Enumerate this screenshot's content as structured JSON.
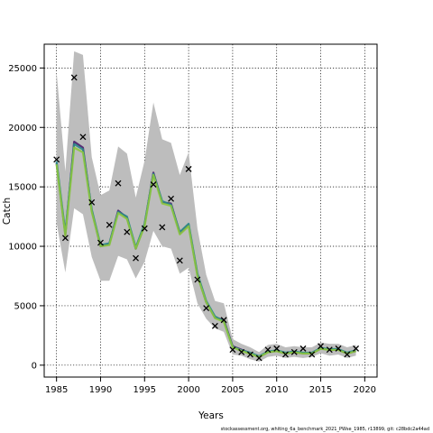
{
  "chart_data": {
    "type": "line",
    "title": "",
    "xlabel": "Years",
    "ylabel": "Catch",
    "xlim": [
      1983.6,
      2021.4
    ],
    "ylim": [
      -1000,
      27000
    ],
    "grid": true,
    "x_ticks": [
      1985,
      1990,
      1995,
      2000,
      2005,
      2010,
      2015,
      2020
    ],
    "y_ticks": [
      0,
      5000,
      10000,
      15000,
      20000,
      25000
    ],
    "years": [
      1985,
      1986,
      1987,
      1988,
      1989,
      1990,
      1991,
      1992,
      1993,
      1994,
      1995,
      1996,
      1997,
      1998,
      1999,
      2000,
      2001,
      2002,
      2003,
      2004,
      2005,
      2006,
      2007,
      2008,
      2009,
      2010,
      2011,
      2012,
      2013,
      2014,
      2015,
      2016,
      2017,
      2018,
      2019
    ],
    "observed": [
      17300,
      10700,
      24200,
      19200,
      13700,
      10300,
      11800,
      15300,
      11200,
      9000,
      11500,
      15200,
      11600,
      14000,
      8800,
      16500,
      7200,
      4800,
      3300,
      3800,
      1300,
      1100,
      900,
      600,
      1300,
      1400,
      900,
      1100,
      1400,
      900,
      1600,
      1300,
      1400,
      900,
      1400
    ],
    "series": [
      {
        "values": [
          17000,
          11000,
          18800,
          18300,
          13000,
          10000,
          10200,
          13000,
          12400,
          9800,
          11800,
          16200,
          13700,
          13600,
          11100,
          11800,
          7600,
          5300,
          4000,
          3800,
          1600,
          1300,
          1000,
          700,
          1100,
          1200,
          1000,
          1100,
          1000,
          1000,
          1400,
          1300,
          1300,
          1000,
          1200
        ]
      },
      {
        "values": [
          17150,
          11150,
          18600,
          18150,
          13100,
          10100,
          10250,
          12900,
          12500,
          9900,
          11900,
          16100,
          13800,
          13500,
          11200,
          11900,
          7700,
          5400,
          4100,
          3700,
          1550,
          1250,
          1050,
          750,
          1150,
          1250,
          1050,
          1150,
          1050,
          1050,
          1450,
          1350,
          1350,
          1050,
          1250
        ]
      },
      {
        "values": [
          16900,
          10900,
          18300,
          17900,
          12900,
          10000,
          10100,
          12800,
          12300,
          9800,
          11700,
          16000,
          13600,
          13400,
          11000,
          11700,
          7500,
          5300,
          3950,
          3650,
          1500,
          1200,
          950,
          680,
          1080,
          1180,
          980,
          1080,
          980,
          980,
          1380,
          1280,
          1280,
          980,
          1180
        ]
      }
    ],
    "band_lower": [
      12000,
      7800,
      13200,
      12700,
      9100,
      7100,
      7100,
      9200,
      8900,
      7300,
      8700,
      11300,
      10000,
      9800,
      7700,
      8200,
      5200,
      3900,
      3100,
      2800,
      900,
      800,
      500,
      300,
      700,
      800,
      600,
      700,
      600,
      700,
      1000,
      800,
      900,
      600,
      800
    ],
    "band_upper": [
      24700,
      16300,
      26400,
      26100,
      17500,
      14300,
      14700,
      18400,
      17800,
      14100,
      17200,
      22100,
      19000,
      18700,
      16000,
      17900,
      11500,
      7600,
      5400,
      5200,
      2200,
      1800,
      1500,
      1100,
      1700,
      1800,
      1500,
      1600,
      1500,
      1500,
      1900,
      1800,
      1800,
      1500,
      1700
    ],
    "colors": {
      "band": "#bdbdbd",
      "series": [
        "#4a1e6e",
        "#2a8a8a",
        "#8cc63e"
      ],
      "observed": "#000000"
    }
  },
  "footer": "stockassessment.org, whiting_6a_benchmark_2021_PWse_1985, r13899, git: c28bdc2a44ad"
}
